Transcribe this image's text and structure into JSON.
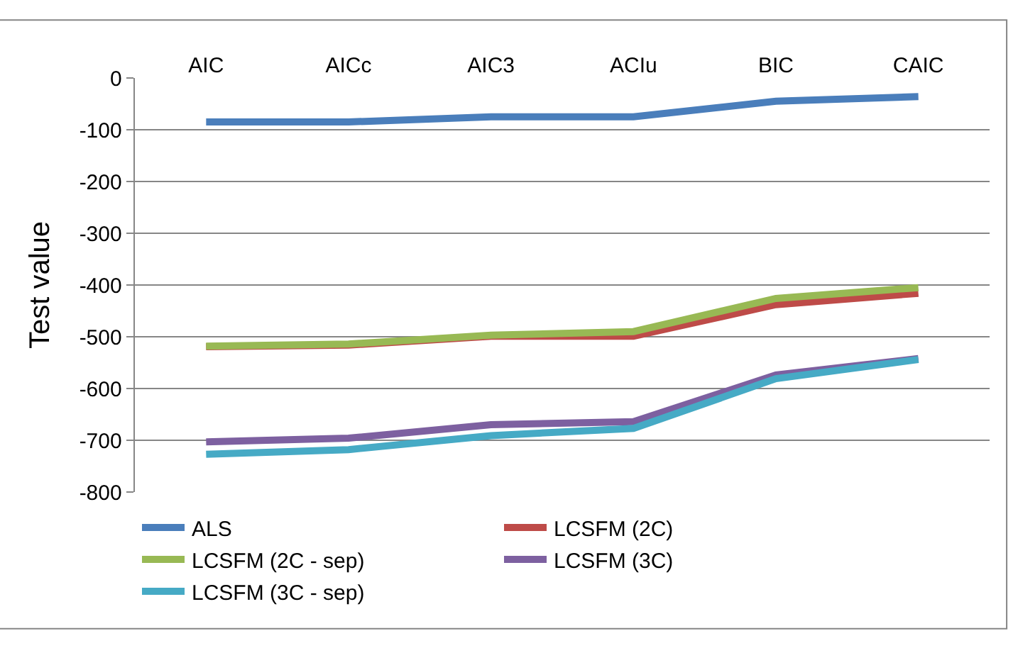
{
  "chart_data": {
    "type": "line",
    "ylabel": "Test value",
    "categories": [
      "AIC",
      "AICc",
      "AIC3",
      "ACIu",
      "BIC",
      "CAIC"
    ],
    "series": [
      {
        "name": "ALS",
        "color": "#4a7ebb",
        "values": [
          -85,
          -85,
          -75,
          -75,
          -45,
          -36
        ]
      },
      {
        "name": "LCSFM (2C)",
        "color": "#be4b48",
        "values": [
          -519,
          -516,
          -499,
          -499,
          -438,
          -416
        ]
      },
      {
        "name": "LCSFM (2C - sep)",
        "color": "#98b954",
        "values": [
          -518,
          -514,
          -497,
          -490,
          -426,
          -405
        ]
      },
      {
        "name": "LCSFM (3C)",
        "color": "#7d60a0",
        "values": [
          -703,
          -696,
          -670,
          -664,
          -574,
          -542
        ]
      },
      {
        "name": "LCSFM (3C - sep)",
        "color": "#46aac5",
        "values": [
          -727,
          -718,
          -691,
          -677,
          -581,
          -544
        ]
      }
    ],
    "ylim": [
      -800,
      0
    ],
    "yticks": [
      -800,
      -700,
      -600,
      -500,
      -400,
      -300,
      -200,
      -100,
      0
    ],
    "grid": "y",
    "legend": "bottom",
    "marker": "none",
    "line_style": "solid"
  }
}
